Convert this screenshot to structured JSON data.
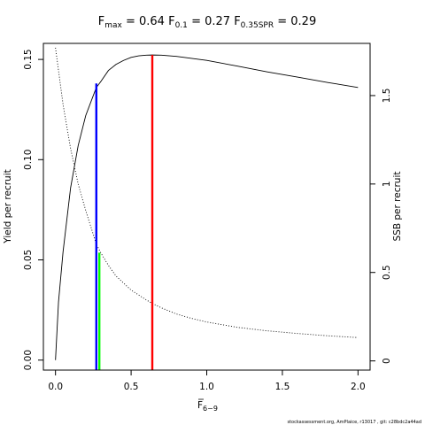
{
  "chart_data": {
    "type": "line",
    "title": {
      "fmax": {
        "symbol": "F",
        "sub": "max",
        "value": "= 0.64"
      },
      "f01": {
        "symbol": "F",
        "sub": "0.1",
        "value": "= 0.27"
      },
      "f035": {
        "symbol": "F",
        "sub": "0.35SPR",
        "value": "= 0.29"
      }
    },
    "xlabel": {
      "symbol": "F",
      "sub": "6−9"
    },
    "ylabel_left": "Yield per recruit",
    "ylabel_right": "SSB per recruit",
    "xlim": [
      -0.08,
      2.08
    ],
    "ylim_left": [
      -0.005,
      0.158
    ],
    "ylim_right": [
      -0.052,
      1.795
    ],
    "x_ticks": [
      {
        "value": 0,
        "label": "0.0"
      },
      {
        "value": 0.5,
        "label": "0.5"
      },
      {
        "value": 1.0,
        "label": "1.0"
      },
      {
        "value": 1.5,
        "label": "1.5"
      },
      {
        "value": 2.0,
        "label": "2.0"
      }
    ],
    "y_left_ticks": [
      {
        "value": 0,
        "label": "0.00"
      },
      {
        "value": 0.05,
        "label": "0.05"
      },
      {
        "value": 0.1,
        "label": "0.10"
      },
      {
        "value": 0.15,
        "label": "0.15"
      }
    ],
    "y_right_ticks": [
      {
        "value": 0,
        "label": "0"
      },
      {
        "value": 0.5,
        "label": "0.5"
      },
      {
        "value": 1,
        "label": "1"
      },
      {
        "value": 1.5,
        "label": "1.5"
      }
    ],
    "series": [
      {
        "axis": "left",
        "style": "solid",
        "color": "#000000",
        "x": [
          0,
          0.02,
          0.05,
          0.1,
          0.15,
          0.2,
          0.27,
          0.3,
          0.35,
          0.4,
          0.45,
          0.5,
          0.55,
          0.6,
          0.64,
          0.7,
          0.8,
          0.9,
          1.0,
          1.2,
          1.4,
          1.6,
          1.8,
          2.0
        ],
        "y": [
          0,
          0.029,
          0.054,
          0.086,
          0.107,
          0.122,
          0.136,
          0.139,
          0.1445,
          0.1475,
          0.1495,
          0.151,
          0.1518,
          0.1521,
          0.1522,
          0.1521,
          0.1515,
          0.1505,
          0.1495,
          0.1467,
          0.1438,
          0.1412,
          0.1385,
          0.136
        ]
      },
      {
        "axis": "right",
        "style": "dotted",
        "color": "#000000",
        "x": [
          0,
          0.05,
          0.1,
          0.15,
          0.2,
          0.27,
          0.3,
          0.35,
          0.4,
          0.5,
          0.6,
          0.64,
          0.7,
          0.8,
          0.9,
          1.0,
          1.2,
          1.4,
          1.6,
          1.8,
          2.0
        ],
        "y": [
          1.77,
          1.45,
          1.2,
          1.0,
          0.85,
          0.66,
          0.61,
          0.54,
          0.48,
          0.4,
          0.345,
          0.325,
          0.3,
          0.265,
          0.24,
          0.22,
          0.19,
          0.17,
          0.155,
          0.142,
          0.132
        ]
      }
    ],
    "reference_lines": [
      {
        "name": "Fmax",
        "x": 0.64,
        "y_top": 0.1522,
        "axis": "left",
        "color": "#ff0000"
      },
      {
        "name": "F0.1",
        "x": 0.27,
        "y_top": 0.138,
        "axis": "left",
        "color": "#0000ff"
      },
      {
        "name": "F0.35SPR",
        "x": 0.29,
        "y_top": 0.612,
        "axis": "right",
        "color": "#00ff00"
      }
    ],
    "grid": false,
    "legend": "none"
  },
  "footnote": "stockassessment.org, AmPlaice, r13017 , git: c28bdc2a44ad"
}
